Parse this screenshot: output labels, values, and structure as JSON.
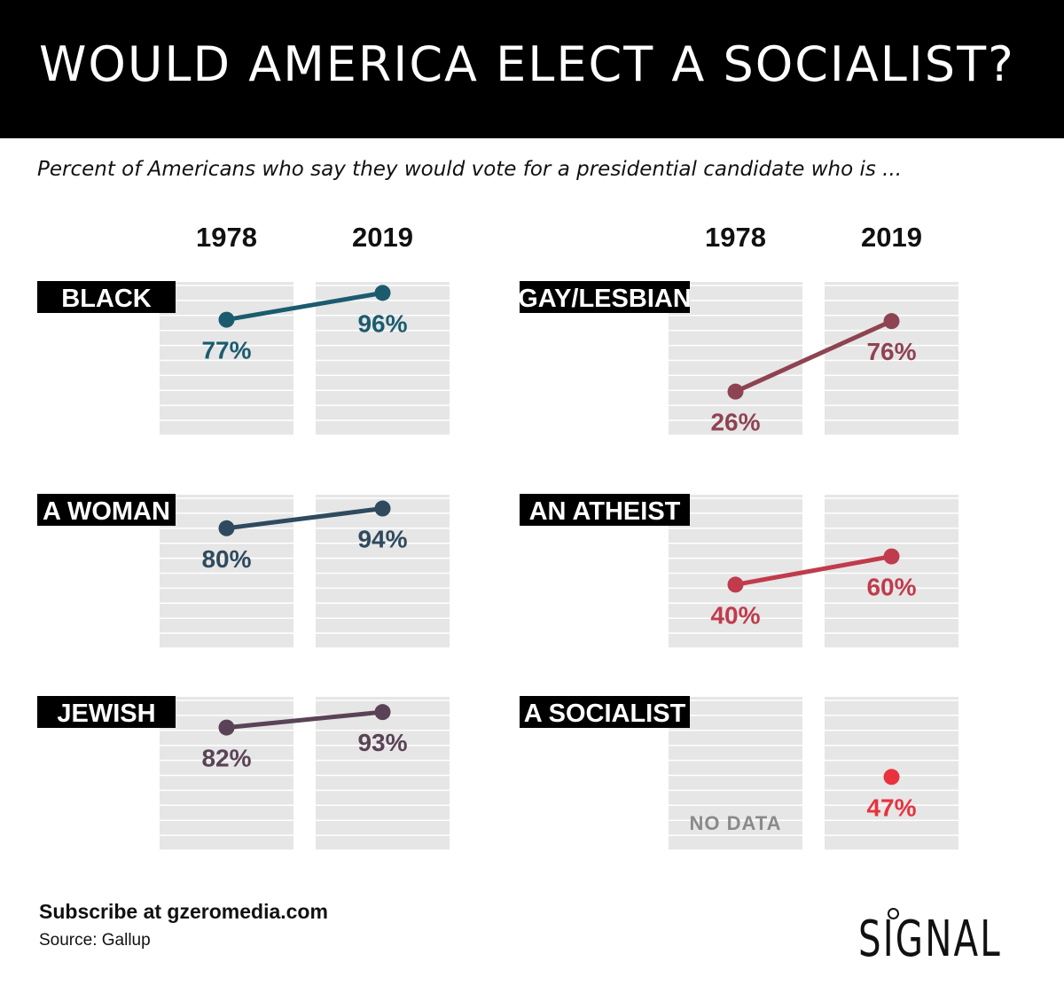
{
  "title": "WOULD AMERICA ELECT A SOCIALIST?",
  "subtitle": "Percent of Americans who say they would vote for a presidential candidate who is ...",
  "footer": {
    "cta": "Subscribe at gzeromedia.com",
    "source": "Source: Gallup"
  },
  "logo": {
    "text": "SIGNAL"
  },
  "chart_data": {
    "type": "line",
    "title": "WOULD AMERICA ELECT A SOCIALIST?",
    "subtitle": "Percent of Americans who say they would vote for a presidential candidate who is ...",
    "x": [
      "1978",
      "2019"
    ],
    "ylim": [
      0,
      100
    ],
    "grid": true,
    "no_data_label": "NO DATA",
    "series": [
      {
        "name": "BLACK",
        "values": [
          77,
          96
        ],
        "labels": [
          "77%",
          "96%"
        ],
        "color": "#1b5b6e"
      },
      {
        "name": "A WOMAN",
        "values": [
          80,
          94
        ],
        "labels": [
          "80%",
          "94%"
        ],
        "color": "#2f4a5e"
      },
      {
        "name": "JEWISH",
        "values": [
          82,
          93
        ],
        "labels": [
          "82%",
          "93%"
        ],
        "color": "#5a4356"
      },
      {
        "name": "GAY/LESBIAN",
        "values": [
          26,
          76
        ],
        "labels": [
          "26%",
          "76%"
        ],
        "color": "#8e4352"
      },
      {
        "name": "AN ATHEIST",
        "values": [
          40,
          60
        ],
        "labels": [
          "40%",
          "60%"
        ],
        "color": "#c03b4c"
      },
      {
        "name": "A SOCIALIST",
        "values": [
          null,
          47
        ],
        "labels": [
          null,
          "47%"
        ],
        "color": "#e8323e"
      }
    ]
  }
}
